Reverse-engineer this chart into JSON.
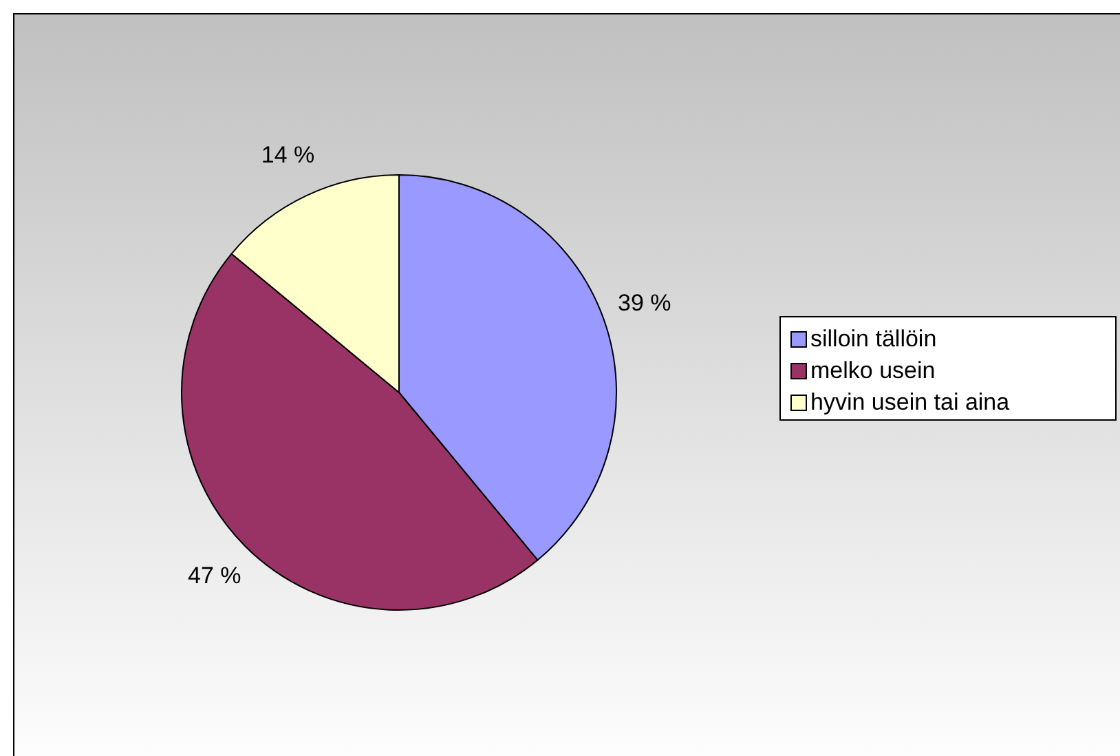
{
  "chart_data": {
    "type": "pie",
    "categories": [
      "silloin tällöin",
      "melko usein",
      "hyvin usein tai aina"
    ],
    "values": [
      39,
      47,
      14
    ],
    "colors": [
      "#9999ff",
      "#993366",
      "#ffffcc"
    ],
    "value_labels": [
      "39 %",
      "47 %",
      "14 %"
    ],
    "legend": "right"
  }
}
